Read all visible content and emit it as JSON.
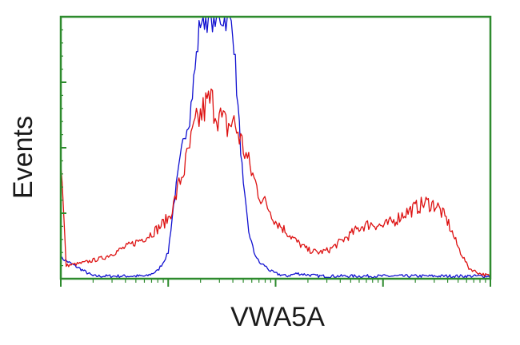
{
  "chart_data": {
    "type": "line",
    "title": "",
    "xlabel": "VWA5A",
    "ylabel": "Events",
    "x_scale": "log",
    "xlim": [
      0,
      4
    ],
    "ylim": [
      0,
      100
    ],
    "grid": false,
    "legend": "none",
    "axis_color": "#2e8b2e",
    "series": [
      {
        "color": "#1010d0",
        "x": [
          0.0,
          0.3,
          0.6,
          0.8,
          0.9,
          0.95,
          1.0,
          1.05,
          1.1,
          1.15,
          1.2,
          1.25,
          1.3,
          1.35,
          1.4,
          1.45,
          1.5,
          1.55,
          1.6,
          1.65,
          1.7,
          1.75,
          1.8,
          1.85,
          1.9,
          1.95,
          2.0,
          2.1,
          2.2,
          2.4,
          2.6,
          2.8,
          3.0,
          3.2,
          3.4,
          3.6,
          3.8,
          4.0
        ],
        "values": [
          8,
          1,
          1,
          1,
          3,
          6,
          10,
          28,
          42,
          55,
          62,
          80,
          99,
          100,
          100,
          100,
          100,
          100,
          98,
          65,
          35,
          18,
          10,
          6,
          5,
          3,
          2,
          1,
          2,
          1,
          1,
          1,
          1,
          1,
          1,
          1,
          1,
          1
        ]
      },
      {
        "color": "#dd1111",
        "x": [
          0.0,
          0.05,
          0.2,
          0.4,
          0.6,
          0.8,
          0.9,
          1.0,
          1.05,
          1.1,
          1.15,
          1.2,
          1.25,
          1.3,
          1.35,
          1.4,
          1.45,
          1.5,
          1.55,
          1.6,
          1.65,
          1.7,
          1.75,
          1.8,
          1.85,
          1.9,
          1.95,
          2.0,
          2.1,
          2.2,
          2.3,
          2.4,
          2.5,
          2.6,
          2.7,
          2.8,
          2.9,
          3.0,
          3.1,
          3.2,
          3.3,
          3.4,
          3.5,
          3.6,
          3.7,
          3.8,
          3.9,
          4.0
        ],
        "values": [
          46,
          5,
          6,
          8,
          12,
          16,
          19,
          23,
          28,
          36,
          42,
          50,
          58,
          62,
          66,
          68,
          64,
          60,
          58,
          60,
          56,
          50,
          44,
          38,
          32,
          29,
          26,
          22,
          18,
          14,
          11,
          10,
          11,
          14,
          17,
          20,
          21,
          20,
          22,
          25,
          27,
          29,
          28,
          22,
          12,
          4,
          2,
          1
        ]
      }
    ]
  }
}
